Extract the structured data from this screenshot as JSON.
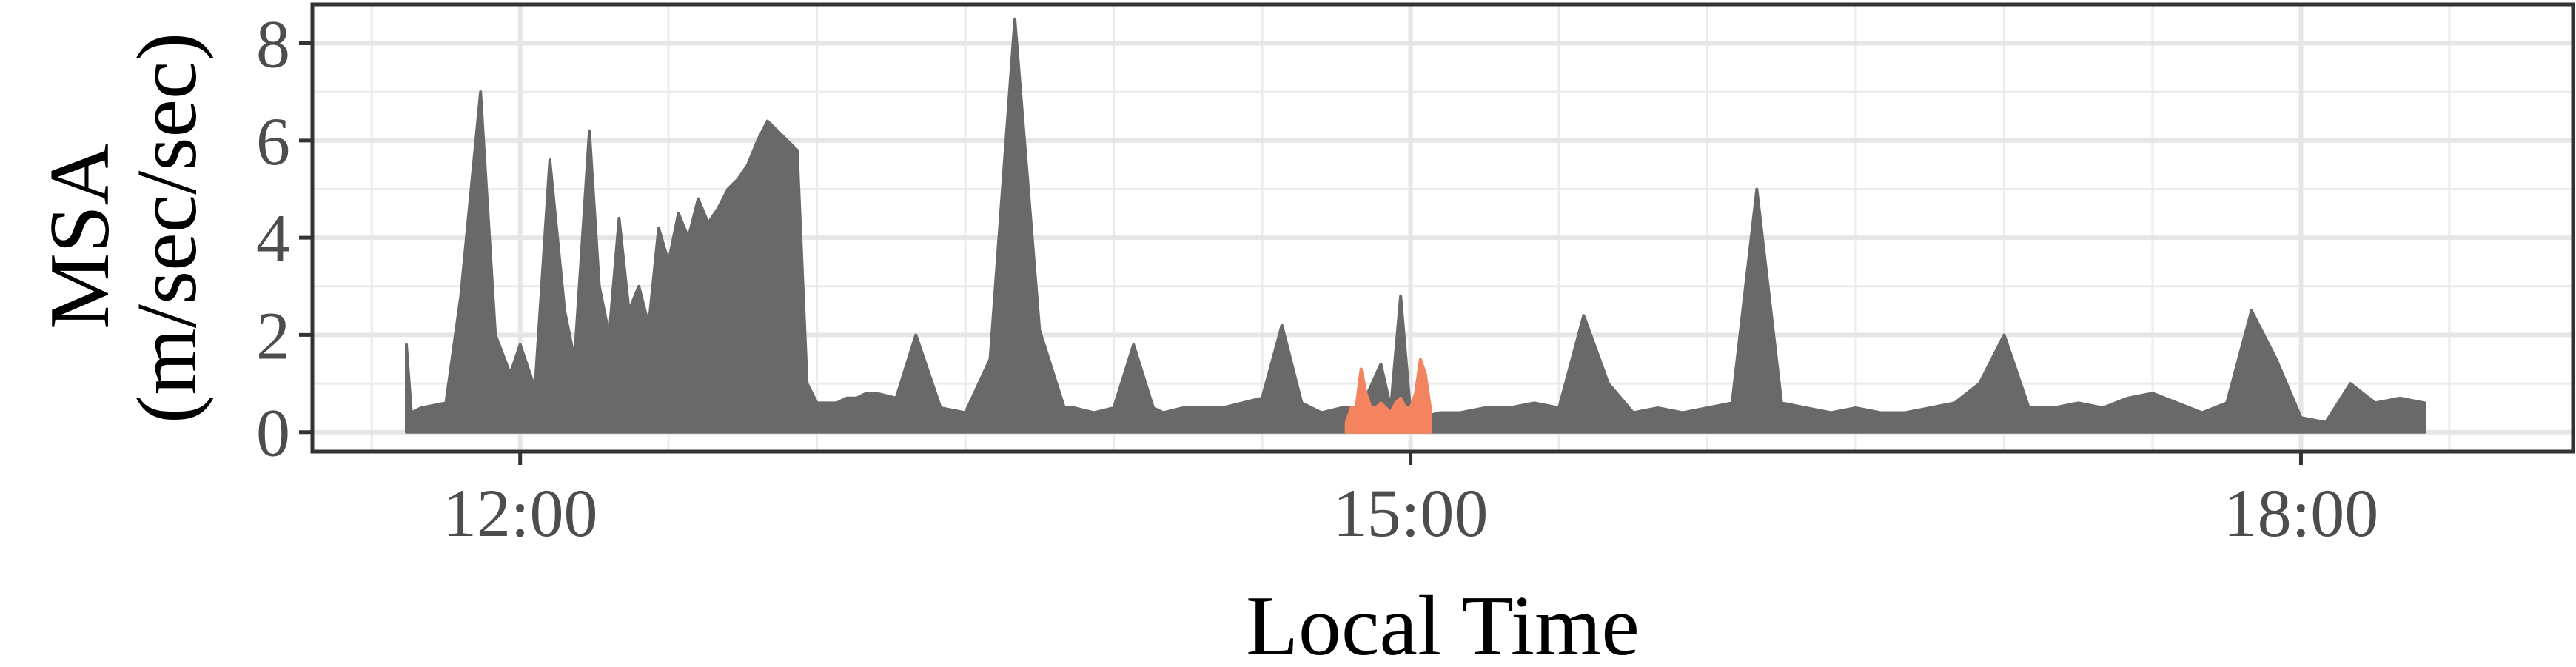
{
  "chart_data": {
    "type": "area",
    "title": "",
    "xlabel": "Local Time",
    "ylabel": "MSA\n(m/sec/sec)",
    "x_ticks": [
      "12:00",
      "15:00",
      "18:00"
    ],
    "y_ticks": [
      "0",
      "2",
      "4",
      "6",
      "8"
    ],
    "xlim": [
      "11:18",
      "18:55"
    ],
    "ylim": [
      -0.4,
      8.8
    ],
    "grid": true,
    "legend": "none",
    "series": [
      {
        "color": "#696969",
        "x": [
          "11:37",
          "11:38",
          "11:40",
          "11:45",
          "11:48",
          "11:52",
          "11:55",
          "11:58",
          "12:00",
          "12:03",
          "12:06",
          "12:09",
          "12:11",
          "12:14",
          "12:16",
          "12:18",
          "12:20",
          "12:22",
          "12:24",
          "12:26",
          "12:28",
          "12:30",
          "12:32",
          "12:34",
          "12:36",
          "12:38",
          "12:40",
          "12:42",
          "12:44",
          "12:46",
          "12:48",
          "12:50",
          "12:52",
          "12:54",
          "12:56",
          "12:58",
          "13:00",
          "13:02",
          "13:04",
          "13:06",
          "13:08",
          "13:10",
          "13:12",
          "13:16",
          "13:20",
          "13:25",
          "13:30",
          "13:35",
          "13:40",
          "13:45",
          "13:50",
          "13:52",
          "13:56",
          "14:00",
          "14:04",
          "14:08",
          "14:10",
          "14:14",
          "14:18",
          "14:22",
          "14:26",
          "14:30",
          "14:34",
          "14:38",
          "14:42",
          "14:46",
          "14:50",
          "14:54",
          "14:56",
          "14:58",
          "15:00",
          "15:02",
          "15:06",
          "15:10",
          "15:15",
          "15:20",
          "15:25",
          "15:30",
          "15:35",
          "15:40",
          "15:45",
          "15:50",
          "15:55",
          "16:00",
          "16:05",
          "16:10",
          "16:15",
          "16:20",
          "16:25",
          "16:30",
          "16:35",
          "16:40",
          "16:45",
          "16:50",
          "16:55",
          "17:00",
          "17:05",
          "17:10",
          "17:15",
          "17:20",
          "17:25",
          "17:30",
          "17:35",
          "17:40",
          "17:45",
          "17:50",
          "17:55",
          "18:00",
          "18:05",
          "18:10",
          "18:15",
          "18:20",
          "18:25"
        ],
        "values": [
          1.8,
          0.4,
          0.5,
          0.6,
          2.8,
          7.0,
          2.0,
          1.2,
          1.8,
          0.9,
          5.6,
          2.5,
          1.5,
          6.2,
          3.0,
          2.0,
          4.4,
          2.5,
          3.0,
          2.2,
          4.2,
          3.5,
          4.5,
          4.0,
          4.8,
          4.3,
          4.6,
          5.0,
          5.2,
          5.5,
          6.0,
          6.4,
          6.2,
          6.0,
          5.8,
          1.0,
          0.6,
          0.6,
          0.6,
          0.7,
          0.7,
          0.8,
          0.8,
          0.7,
          2.0,
          0.5,
          0.4,
          1.5,
          8.5,
          2.1,
          0.5,
          0.5,
          0.4,
          0.5,
          1.8,
          0.5,
          0.4,
          0.5,
          0.5,
          0.5,
          0.6,
          0.7,
          2.2,
          0.6,
          0.4,
          0.5,
          0.5,
          1.4,
          0.5,
          2.8,
          0.4,
          0.3,
          0.4,
          0.4,
          0.5,
          0.5,
          0.6,
          0.5,
          2.4,
          1.0,
          0.4,
          0.5,
          0.4,
          0.5,
          0.6,
          5.0,
          0.6,
          0.5,
          0.4,
          0.5,
          0.4,
          0.4,
          0.5,
          0.6,
          1.0,
          2.0,
          0.5,
          0.5,
          0.6,
          0.5,
          0.7,
          0.8,
          0.6,
          0.4,
          0.6,
          2.5,
          1.5,
          0.3,
          0.2,
          1.0,
          0.6,
          0.7,
          0.6
        ]
      },
      {
        "color": "#F4845F",
        "x": [
          "14:47",
          "14:48",
          "14:49",
          "14:50",
          "14:51",
          "14:52",
          "14:53",
          "14:54",
          "14:55",
          "14:56",
          "14:57",
          "14:58",
          "14:59",
          "15:00",
          "15:01",
          "15:02",
          "15:03",
          "15:04"
        ],
        "values": [
          0.2,
          0.5,
          0.5,
          1.3,
          0.8,
          0.5,
          0.5,
          0.6,
          0.5,
          0.4,
          0.6,
          0.7,
          0.5,
          0.5,
          0.8,
          1.5,
          1.2,
          0.5
        ]
      }
    ]
  }
}
